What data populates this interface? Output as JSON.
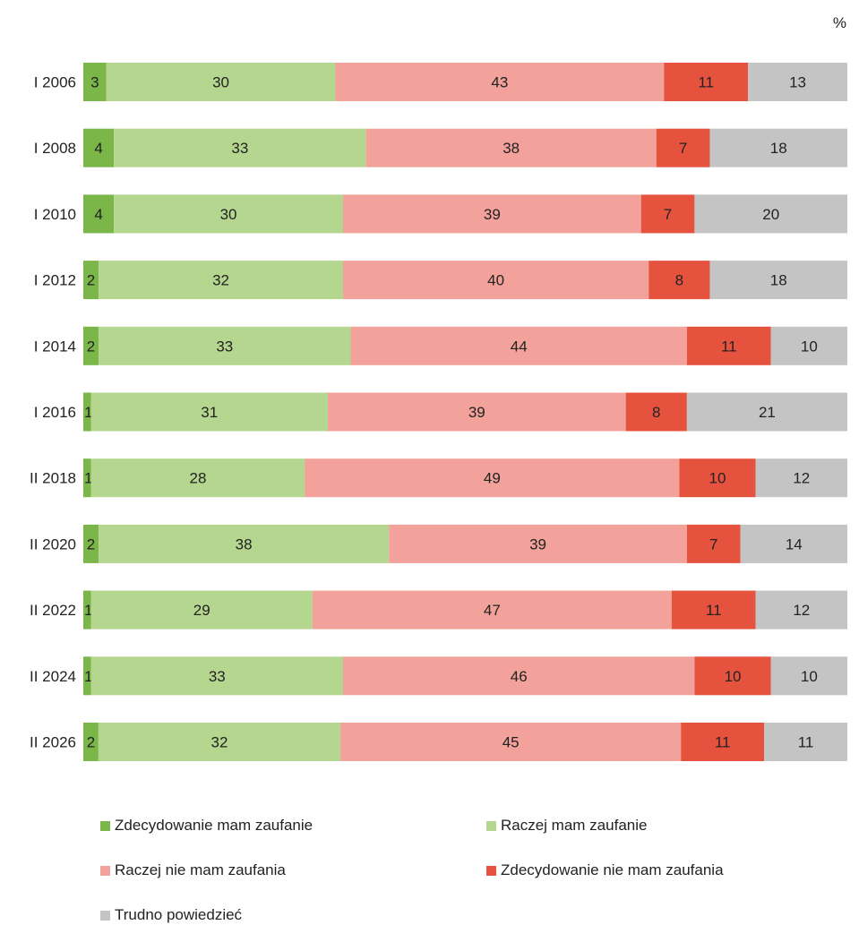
{
  "unit_label": "%",
  "colors": {
    "strong_trust": "#7ab648",
    "rather_trust": "#b5d68e",
    "rather_no_trust": "#f2a29a",
    "strong_no_trust": "#e5533f",
    "hard_to_say": "#c4c4c4"
  },
  "chart_data": {
    "type": "bar",
    "orientation": "horizontal",
    "stacked": true,
    "normalized_percent": true,
    "categories": [
      "I 2006",
      "I 2008",
      "I 2010",
      "I 2012",
      "I 2014",
      "I 2016",
      "II 2018",
      "II 2020",
      "II 2022",
      "II 2024",
      "II 2026"
    ],
    "series": [
      {
        "name": "Zdecydowanie mam zaufanie",
        "color": "#7ab648",
        "values": [
          3,
          4,
          4,
          2,
          2,
          1,
          1,
          2,
          1,
          1,
          2
        ]
      },
      {
        "name": "Raczej mam zaufanie",
        "color": "#b5d68e",
        "values": [
          30,
          33,
          30,
          32,
          33,
          31,
          28,
          38,
          29,
          33,
          32
        ]
      },
      {
        "name": "Raczej nie mam zaufania",
        "color": "#f2a29a",
        "values": [
          43,
          38,
          39,
          40,
          44,
          39,
          49,
          39,
          47,
          46,
          45
        ]
      },
      {
        "name": "Zdecydowanie nie mam zaufania",
        "color": "#e5533f",
        "values": [
          11,
          7,
          7,
          8,
          11,
          8,
          10,
          7,
          11,
          10,
          11
        ]
      },
      {
        "name": "Trudno powiedzieć",
        "color": "#c4c4c4",
        "values": [
          13,
          18,
          20,
          18,
          10,
          21,
          12,
          14,
          12,
          10,
          11
        ]
      }
    ],
    "xlim": [
      0,
      100
    ],
    "grid": false,
    "legend_position": "bottom"
  }
}
